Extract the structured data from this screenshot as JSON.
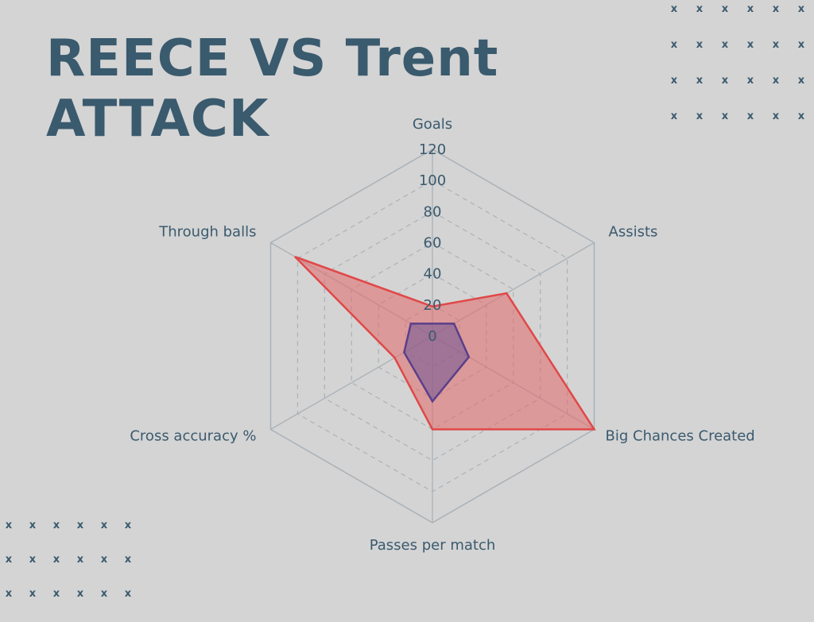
{
  "title": {
    "line1": "REECE VS Trent",
    "line2": "ATTACK"
  },
  "decor": {
    "mark": "x",
    "top_right_count": 24,
    "bottom_left_count": 18,
    "color": "#3a5a6e"
  },
  "colors": {
    "background": "#d4d4d4",
    "text": "#3a5a6e",
    "grid": "#aab1b7",
    "trent_fill": "rgba(226,103,103,0.55)",
    "trent_stroke": "#e04848",
    "reece_fill": "rgba(112,86,150,0.55)",
    "reece_stroke": "#5a3f8a"
  },
  "chart_data": {
    "type": "radar",
    "axes": [
      "Goals",
      "Assists",
      "Big Chances Created",
      "Passes per match",
      "Cross accuracy %",
      "Through balls"
    ],
    "rlim": [
      0,
      120
    ],
    "ticks": [
      "0",
      "20",
      "40",
      "60",
      "80",
      "100",
      "120"
    ],
    "tick_values": [
      0,
      20,
      40,
      60,
      80,
      100,
      120
    ],
    "grid": true,
    "series": [
      {
        "values": [
          19,
          55,
          120,
          60,
          28,
          102
        ]
      },
      {
        "values": [
          8,
          16,
          27,
          42,
          21,
          16
        ]
      }
    ]
  }
}
